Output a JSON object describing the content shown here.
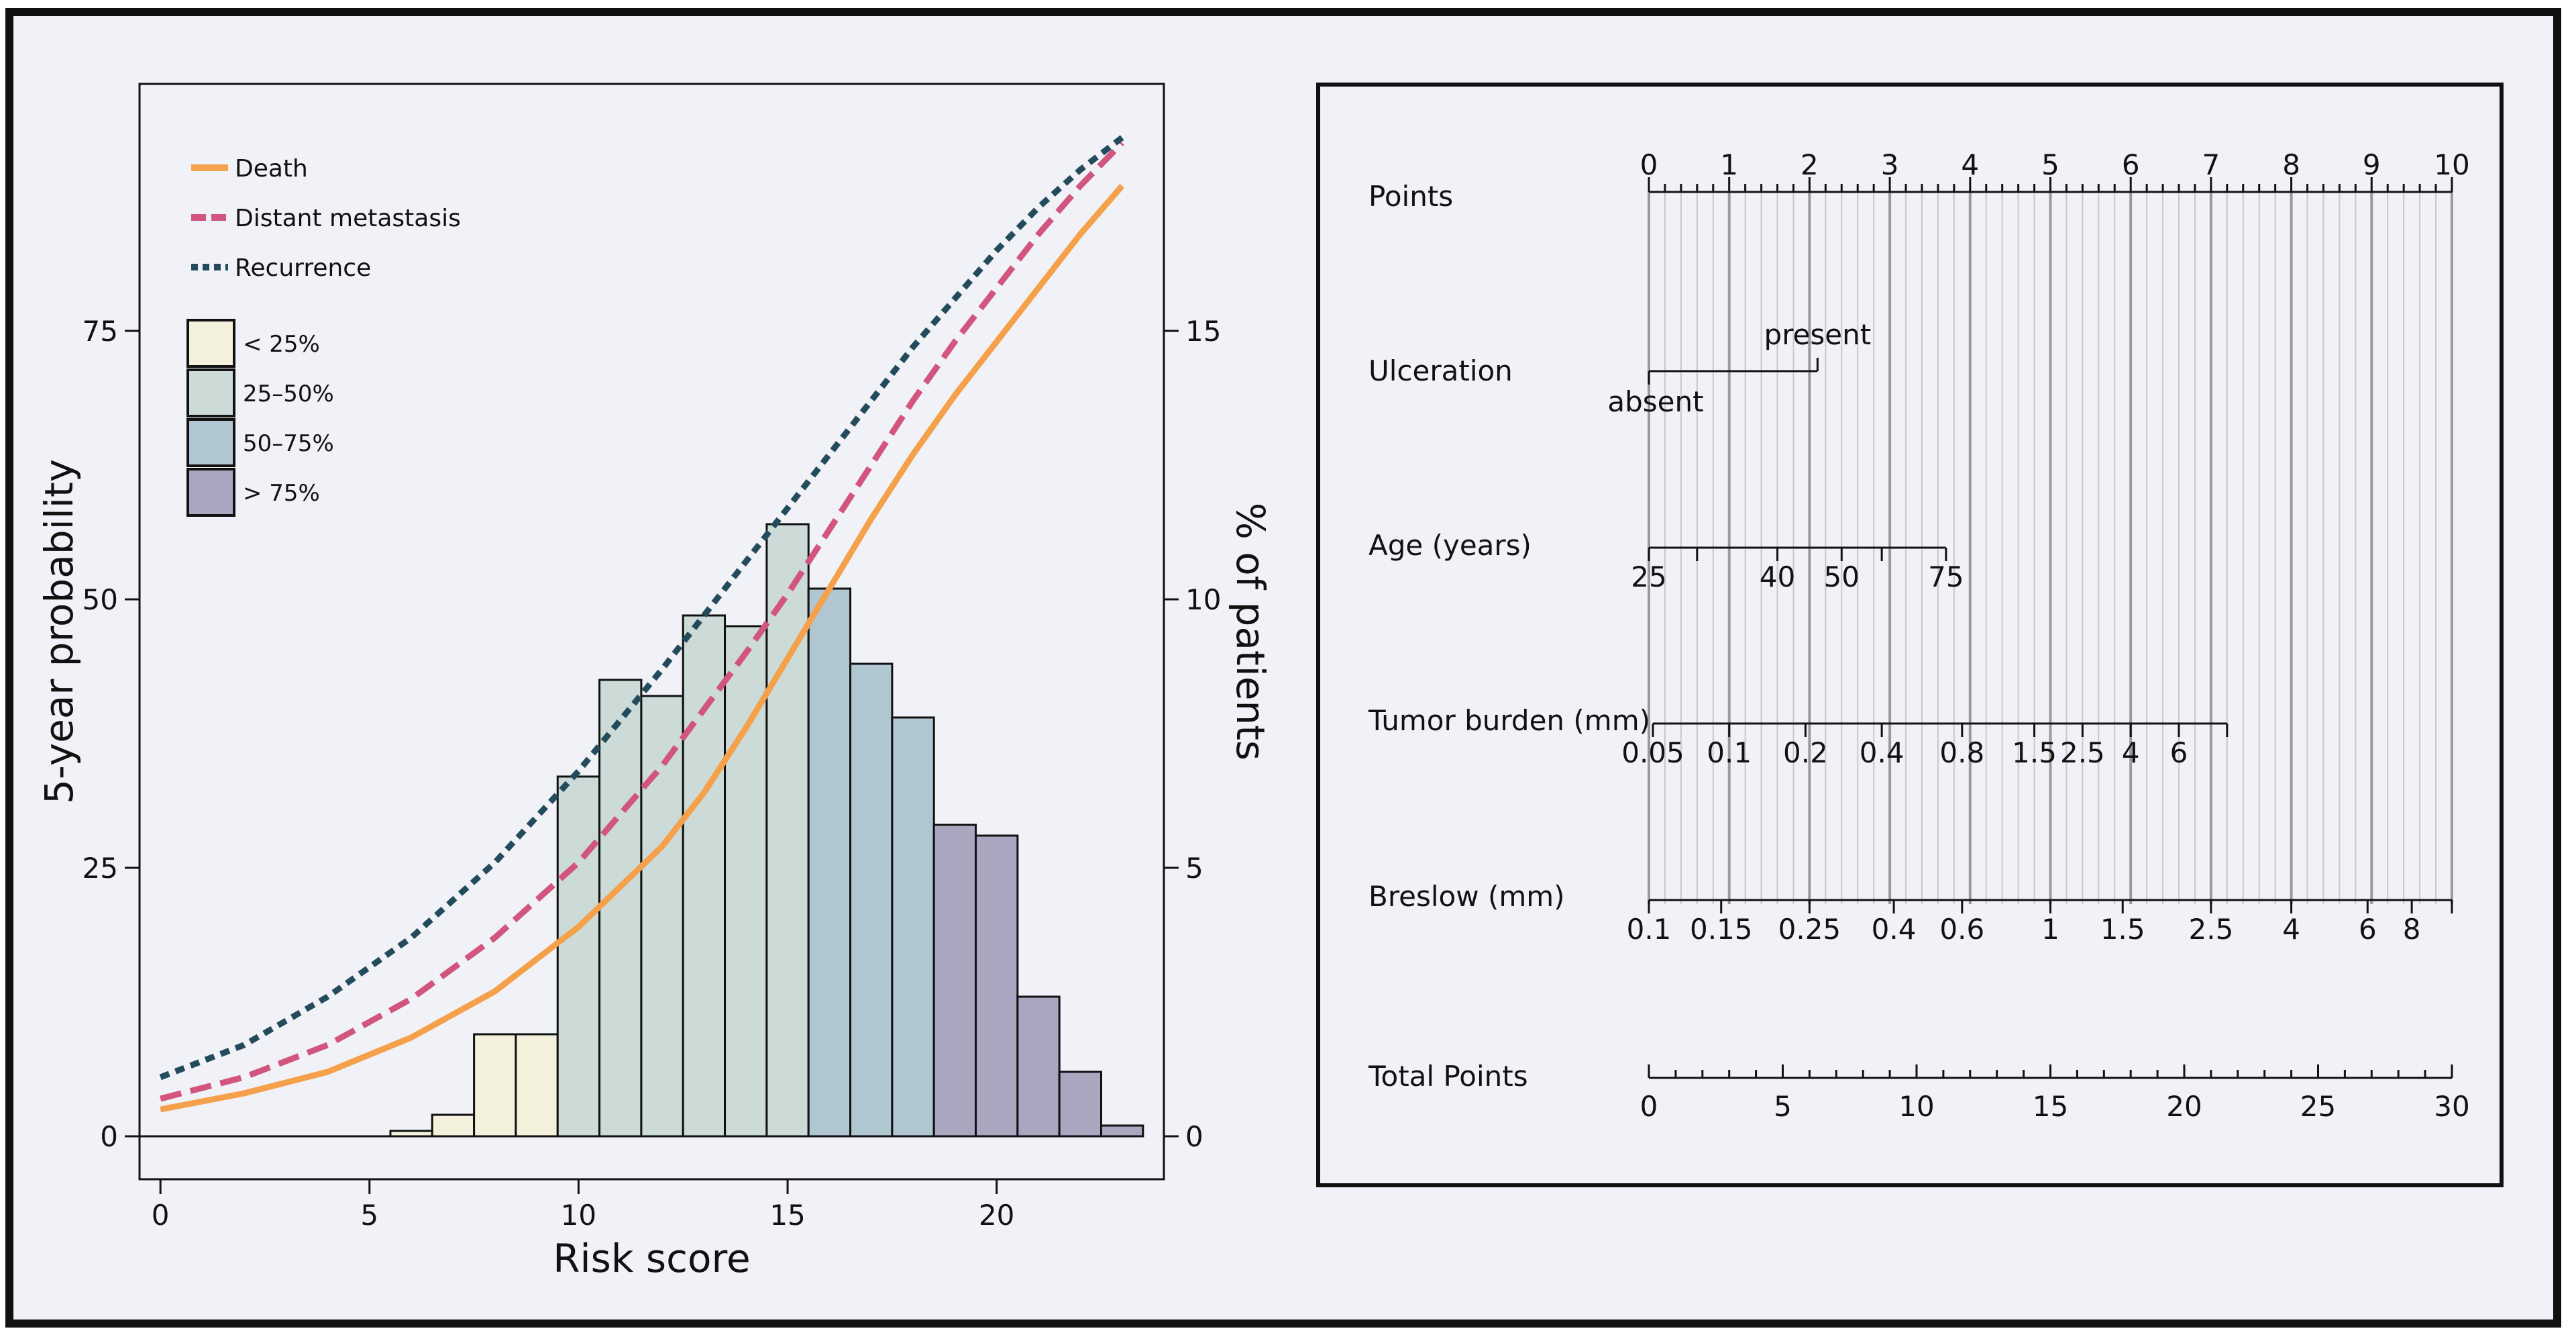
{
  "chart_data": [
    {
      "type": "bar+line",
      "xlabel": "Risk score",
      "ylabel": "5-year probability",
      "y2label": "% of patients",
      "xticks": [
        0,
        5,
        10,
        15,
        20
      ],
      "yticks": [
        0,
        25,
        50,
        75
      ],
      "y2ticks": [
        0,
        5,
        10,
        15
      ],
      "xlim": [
        -0.5,
        24
      ],
      "ylim": [
        -4,
        98
      ],
      "y2lim": [
        -0.8,
        19.6
      ],
      "grid": false,
      "legend_position": "top-left",
      "lines": [
        {
          "name": "Death",
          "style": "solid",
          "color": "#f5a04a",
          "x": [
            0,
            2,
            4,
            6,
            8,
            10,
            12,
            13,
            14,
            15,
            16,
            17,
            18,
            19,
            20,
            21,
            22,
            23
          ],
          "y": [
            2.5,
            4,
            6,
            9.2,
            13.5,
            19.5,
            27,
            32,
            38,
            44.5,
            51,
            57.5,
            63.5,
            69,
            74,
            79,
            84,
            88.5
          ]
        },
        {
          "name": "Distant metastasis",
          "style": "dashed",
          "color": "#d2557e",
          "x": [
            0,
            2,
            4,
            6,
            8,
            10,
            12,
            14,
            15,
            16,
            17,
            18,
            19,
            20,
            21,
            22,
            23
          ],
          "y": [
            3.5,
            5.5,
            8.5,
            12.8,
            18.5,
            25.5,
            34.5,
            45,
            50.5,
            56.5,
            62.5,
            68.5,
            74,
            79,
            84,
            88.5,
            92.5
          ]
        },
        {
          "name": "Recurrence",
          "style": "dotted",
          "color": "#234b5c",
          "x": [
            0,
            2,
            4,
            6,
            8,
            10,
            12,
            14,
            15,
            16,
            17,
            18,
            19,
            20,
            21,
            22,
            23
          ],
          "y": [
            5.5,
            8.5,
            13,
            18.5,
            25.5,
            34,
            43.5,
            53.5,
            58.5,
            63.5,
            68.5,
            73.5,
            78,
            82.5,
            86.5,
            90,
            93
          ]
        }
      ],
      "bars_axis": "right",
      "bars": {
        "bin_width": 1,
        "left_edges": [
          -0.5,
          0.5,
          1.5,
          2.5,
          3.5,
          4.5,
          5.5,
          6.5,
          7.5,
          8.5,
          9.5,
          10.5,
          11.5,
          12.5,
          13.5,
          14.5,
          15.5,
          16.5,
          17.5,
          18.5,
          19.5,
          20.5,
          21.5,
          22.5
        ],
        "values": [
          0,
          0,
          0,
          0,
          0,
          0,
          0.1,
          0.4,
          1.9,
          1.9,
          6.7,
          8.5,
          8.2,
          9.7,
          9.5,
          11.4,
          10.2,
          8.8,
          7.8,
          5.8,
          5.6,
          2.6,
          1.2,
          0.2
        ],
        "groups": [
          "none",
          "none",
          "none",
          "none",
          "none",
          "none",
          "q1",
          "q1",
          "q1",
          "q1",
          "q2",
          "q2",
          "q2",
          "q2",
          "q2",
          "q2",
          "q3",
          "q3",
          "q3",
          "q4",
          "q4",
          "q4",
          "q4",
          "q4"
        ]
      },
      "quartile_legend": [
        {
          "key": "q1",
          "label": "< 25%",
          "color": "#f3f0dc"
        },
        {
          "key": "q2",
          "label": "25–50%",
          "color": "#ccdbd7"
        },
        {
          "key": "q3",
          "label": "50–75%",
          "color": "#b0c6d1"
        },
        {
          "key": "q4",
          "label": "> 75%",
          "color": "#a9a6c0"
        }
      ]
    },
    {
      "type": "nomogram",
      "points_scale": {
        "label": "Points",
        "min": 0,
        "max": 10,
        "ticks": [
          0,
          1,
          2,
          3,
          4,
          5,
          6,
          7,
          8,
          9,
          10
        ]
      },
      "variables": [
        {
          "label": "Ulceration",
          "kind": "categorical",
          "levels": [
            {
              "label": "absent",
              "points": 0
            },
            {
              "label": "present",
              "points": 2.1
            }
          ]
        },
        {
          "label": "Age (years)",
          "kind": "continuous",
          "ticks": [
            {
              "value": 25,
              "points": 0,
              "label": "25"
            },
            {
              "value": 30,
              "points": 0.6,
              "label": ""
            },
            {
              "value": 40,
              "points": 1.6,
              "label": "40"
            },
            {
              "value": 50,
              "points": 2.4,
              "label": "50"
            },
            {
              "value": 60,
              "points": 2.9,
              "label": ""
            },
            {
              "value": 75,
              "points": 3.7,
              "label": "75"
            }
          ]
        },
        {
          "label": "Tumor burden (mm)",
          "kind": "continuous",
          "ticks": [
            {
              "value": 0.05,
              "points": 0.05,
              "label": "0.05"
            },
            {
              "value": 0.1,
              "points": 1.0,
              "label": "0.1"
            },
            {
              "value": 0.2,
              "points": 1.95,
              "label": "0.2"
            },
            {
              "value": 0.4,
              "points": 2.9,
              "label": "0.4"
            },
            {
              "value": 0.8,
              "points": 3.9,
              "label": "0.8"
            },
            {
              "value": 1.5,
              "points": 4.8,
              "label": "1.5"
            },
            {
              "value": 2.5,
              "points": 5.4,
              "label": "2.5"
            },
            {
              "value": 4,
              "points": 6.0,
              "label": "4"
            },
            {
              "value": 6,
              "points": 6.6,
              "label": "6"
            },
            {
              "value": 8,
              "points": 7.2,
              "label": ""
            }
          ]
        },
        {
          "label": "Breslow (mm)",
          "kind": "continuous",
          "ticks": [
            {
              "value": 0.1,
              "points": 0.0,
              "label": "0.1"
            },
            {
              "value": 0.15,
              "points": 0.9,
              "label": "0.15"
            },
            {
              "value": 0.25,
              "points": 2.0,
              "label": "0.25"
            },
            {
              "value": 0.4,
              "points": 3.05,
              "label": "0.4"
            },
            {
              "value": 0.6,
              "points": 3.9,
              "label": "0.6"
            },
            {
              "value": 1,
              "points": 5.0,
              "label": "1"
            },
            {
              "value": 1.5,
              "points": 5.9,
              "label": "1.5"
            },
            {
              "value": 2.5,
              "points": 7.0,
              "label": "2.5"
            },
            {
              "value": 4,
              "points": 8.0,
              "label": "4"
            },
            {
              "value": 6,
              "points": 8.95,
              "label": "6"
            },
            {
              "value": 8,
              "points": 9.5,
              "label": "8"
            },
            {
              "value": 10,
              "points": 10.0,
              "label": ""
            }
          ]
        }
      ],
      "total_points": {
        "label": "Total Points",
        "min": 0,
        "max": 30,
        "ticks": [
          0,
          5,
          10,
          15,
          20,
          25,
          30
        ]
      }
    }
  ]
}
